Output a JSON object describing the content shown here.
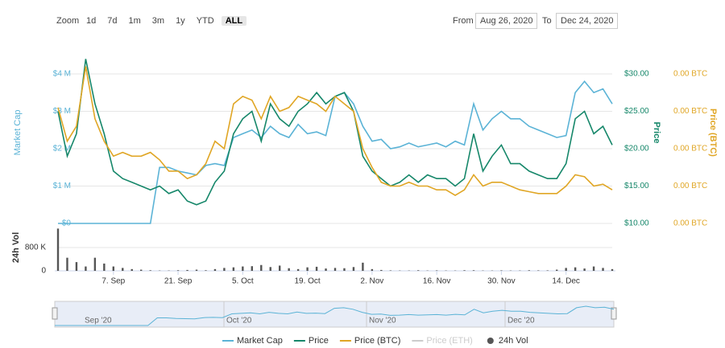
{
  "controls": {
    "zoom_label": "Zoom",
    "buttons": [
      "1d",
      "7d",
      "1m",
      "3m",
      "1y",
      "YTD",
      "ALL"
    ],
    "active": "ALL",
    "from_label": "From",
    "from": "Aug 26, 2020",
    "to_label": "To",
    "to": "Dec 24, 2020"
  },
  "navigator": {
    "labels": [
      "Sep '20",
      "Oct '20",
      "Nov '20",
      "Dec '20"
    ]
  },
  "chart_data": {
    "type": "line",
    "ylabel": "Market Cap",
    "y2label": "Price",
    "y3label": "Price (BTC)",
    "categories": [
      null,
      null,
      null,
      null,
      null,
      null,
      "7. Sep",
      null,
      null,
      null,
      null,
      null,
      null,
      "21. Sep",
      null,
      null,
      null,
      null,
      null,
      null,
      "5. Oct",
      null,
      null,
      null,
      null,
      null,
      null,
      "19. Oct",
      null,
      null,
      null,
      null,
      null,
      null,
      "2. Nov",
      null,
      null,
      null,
      null,
      null,
      null,
      "16. Nov",
      null,
      null,
      null,
      null,
      null,
      null,
      "30. Nov",
      null,
      null,
      null,
      null,
      null,
      null,
      "14. Dec",
      null,
      null,
      null,
      null,
      null
    ],
    "ylim": [
      0,
      4600000
    ],
    "yticks": [
      {
        "value": 0,
        "label": "$0"
      },
      {
        "value": 1000000,
        "label": "$1 M"
      },
      {
        "value": 2000000,
        "label": "$2 M"
      },
      {
        "value": 3000000,
        "label": "$3 M"
      },
      {
        "value": 4000000,
        "label": "$4 M"
      }
    ],
    "y2lim": [
      10,
      33
    ],
    "y2ticks": [
      {
        "value": 10,
        "label": "$10.00"
      },
      {
        "value": 15,
        "label": "$15.00"
      },
      {
        "value": 20,
        "label": "$20.00"
      },
      {
        "value": 25,
        "label": "$25.00"
      },
      {
        "value": 30,
        "label": "$30.00"
      }
    ],
    "y3lim": [
      0.0002,
      0.00204
    ],
    "y3ticks": [
      {
        "value": 0.0002,
        "label": "0.00 BTC"
      },
      {
        "value": 0.0006,
        "label": "0.00 BTC"
      },
      {
        "value": 0.001,
        "label": "0.00 BTC"
      },
      {
        "value": 0.0014,
        "label": "0.00 BTC"
      },
      {
        "value": 0.0018,
        "label": "0.00 BTC"
      }
    ],
    "grid": true,
    "series": [
      {
        "name": "Market Cap",
        "color": "#5bb3d6",
        "axis": "y",
        "values": [
          0,
          0,
          0,
          0,
          0,
          0,
          0,
          0,
          0,
          0,
          0,
          1500000,
          1500000,
          1400000,
          1350000,
          1300000,
          1550000,
          1600000,
          1550000,
          2300000,
          2400000,
          2500000,
          2300000,
          2600000,
          2400000,
          2300000,
          2650000,
          2400000,
          2450000,
          2350000,
          3400000,
          3500000,
          3200000,
          2600000,
          2200000,
          2250000,
          2000000,
          2050000,
          2150000,
          2050000,
          2100000,
          2150000,
          2050000,
          2200000,
          2100000,
          3200000,
          2500000,
          2800000,
          3000000,
          2800000,
          2800000,
          2600000,
          2500000,
          2400000,
          2300000,
          2350000,
          3500000,
          3800000,
          3500000,
          3600000,
          3200000
        ]
      },
      {
        "name": "Price",
        "color": "#16876a",
        "axis": "y2",
        "values": [
          25,
          19,
          22,
          32,
          26,
          22,
          17,
          16,
          15.5,
          15,
          14.5,
          15,
          14,
          14.5,
          13,
          12.5,
          13,
          15.5,
          17,
          22,
          24,
          25,
          21,
          26,
          24,
          23,
          25,
          26,
          27.5,
          26,
          27,
          27.5,
          25,
          19,
          17,
          16,
          15,
          15.5,
          16.5,
          15.5,
          16.5,
          16,
          16,
          15,
          16,
          22,
          17,
          19,
          20.5,
          18,
          18,
          17,
          16.5,
          16,
          16,
          18,
          24,
          25,
          22,
          23,
          20.5
        ]
      },
      {
        "name": "Price (BTC)",
        "color": "#e0a625",
        "axis": "y3",
        "values": [
          0.00144,
          0.00108,
          0.00124,
          0.00188,
          0.00132,
          0.00108,
          0.00092,
          0.00096,
          0.00092,
          0.00092,
          0.00096,
          0.00088,
          0.00076,
          0.00076,
          0.00068,
          0.00072,
          0.00084,
          0.00108,
          0.001,
          0.00148,
          0.00156,
          0.00152,
          0.00132,
          0.00156,
          0.0014,
          0.00144,
          0.00156,
          0.00152,
          0.00148,
          0.0014,
          0.00156,
          0.00148,
          0.0014,
          0.001,
          0.0008,
          0.00064,
          0.0006,
          0.0006,
          0.00064,
          0.0006,
          0.0006,
          0.00056,
          0.00056,
          0.0005,
          0.00056,
          0.00072,
          0.0006,
          0.00064,
          0.00064,
          0.0006,
          0.00056,
          0.00054,
          0.00052,
          0.00052,
          0.00052,
          0.0006,
          0.00072,
          0.0007,
          0.0006,
          0.00062,
          0.00056
        ]
      },
      {
        "name": "Price (ETH)",
        "color": "#cccccc",
        "visible": false
      }
    ],
    "volume": {
      "name": "24h Vol",
      "axis_label": "24h Vol",
      "color": "#555555",
      "ylim": [
        0,
        1500000
      ],
      "yticks": [
        0,
        {
          "value": 800000,
          "label": "800 K"
        }
      ],
      "values": [
        1450000,
        450000,
        300000,
        150000,
        450000,
        250000,
        150000,
        100000,
        60000,
        40000,
        20000,
        10000,
        10000,
        20000,
        30000,
        40000,
        20000,
        60000,
        100000,
        120000,
        150000,
        160000,
        200000,
        130000,
        180000,
        90000,
        60000,
        120000,
        140000,
        80000,
        100000,
        90000,
        130000,
        280000,
        60000,
        30000,
        15000,
        10000,
        10000,
        20000,
        10000,
        15000,
        10000,
        10000,
        20000,
        20000,
        10000,
        10000,
        15000,
        10000,
        10000,
        20000,
        15000,
        15000,
        40000,
        100000,
        120000,
        80000,
        150000,
        100000,
        60000
      ]
    }
  }
}
